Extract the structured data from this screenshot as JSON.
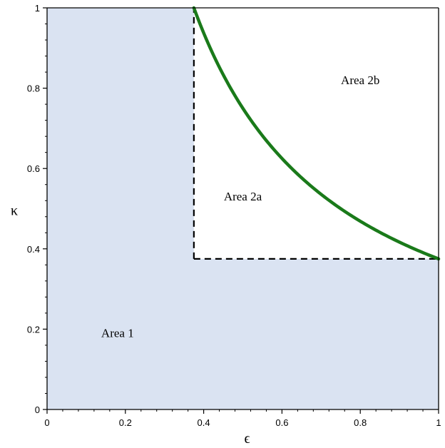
{
  "chart_data": {
    "type": "area",
    "xlabel": "ϵ",
    "ylabel": "κ",
    "xlim": [
      0,
      1
    ],
    "ylim": [
      0,
      1
    ],
    "x_ticks": [
      0,
      0.2,
      0.4,
      0.6,
      0.8,
      1
    ],
    "y_ticks": [
      0,
      0.2,
      0.4,
      0.6,
      0.8,
      1
    ],
    "x_tick_labels": [
      "0",
      "0.2",
      "0.4",
      "0.6",
      "0.8",
      "1"
    ],
    "y_tick_labels": [
      "0",
      "0.2",
      "0.4",
      "0.6",
      "0.8",
      "1"
    ],
    "minor_ticks_per_interval": 4,
    "grid": false,
    "threshold": 0.375,
    "curve": {
      "color": "#1a7a1a",
      "x": [
        0.375,
        0.4,
        0.45,
        0.5,
        0.55,
        0.6,
        0.65,
        0.7,
        0.75,
        0.8,
        0.85,
        0.9,
        0.95,
        1.0
      ],
      "y": [
        1.0,
        0.9375,
        0.8333,
        0.75,
        0.6818,
        0.625,
        0.5769,
        0.5357,
        0.5,
        0.4688,
        0.4412,
        0.4167,
        0.3947,
        0.375
      ]
    },
    "dashed_lines": [
      {
        "name": "vertical-boundary",
        "x": [
          0.375,
          0.375
        ],
        "y": [
          0.375,
          1.0
        ]
      },
      {
        "name": "horizontal-boundary",
        "x": [
          0.375,
          1.0
        ],
        "y": [
          0.375,
          0.375
        ]
      }
    ],
    "shaded_region": {
      "color": "#dae3f2",
      "vertices": [
        [
          0,
          0
        ],
        [
          0,
          1
        ],
        [
          0.375,
          1
        ],
        [
          0.375,
          0.375
        ],
        [
          1,
          0.375
        ],
        [
          1,
          0
        ]
      ]
    },
    "annotations": [
      {
        "text": "Area 1",
        "x": 0.18,
        "y": 0.18
      },
      {
        "text": "Area 2a",
        "x": 0.5,
        "y": 0.52
      },
      {
        "text": "Area 2b",
        "x": 0.8,
        "y": 0.81
      }
    ]
  }
}
